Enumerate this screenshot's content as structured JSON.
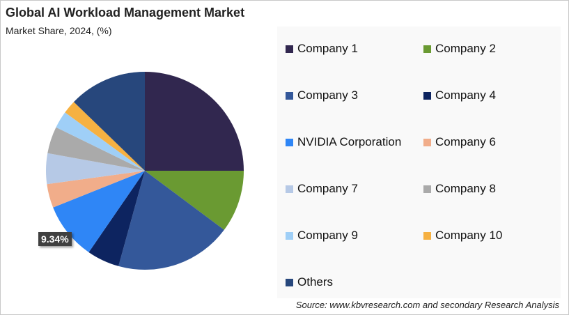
{
  "chart_data": {
    "type": "pie",
    "title": "Global AI Workload Management Market",
    "subtitle": "Market Share, 2024, (%)",
    "categories": [
      "Company 1",
      "Company 2",
      "Company 3",
      "Company 4",
      "NVIDIA Corporation",
      "Company 6",
      "Company 7",
      "Company 8",
      "Company 9",
      "Company 10",
      "Others"
    ],
    "values": [
      25.0,
      10.2,
      19.1,
      5.3,
      9.34,
      3.9,
      5.0,
      4.4,
      2.8,
      2.2,
      12.76
    ],
    "colors": [
      "#31274f",
      "#6a9a32",
      "#34589a",
      "#0d2460",
      "#2f86f6",
      "#f1ad8a",
      "#b6c9e6",
      "#aaaaaa",
      "#9fcff7",
      "#f6b142",
      "#27477c"
    ],
    "data_labels": [
      {
        "category": "NVIDIA Corporation",
        "text": "9.34%"
      }
    ],
    "legend_position": "right",
    "start_angle": "top, clockwise"
  },
  "source": "Source: www.kbvresearch.com and secondary Research Analysis"
}
